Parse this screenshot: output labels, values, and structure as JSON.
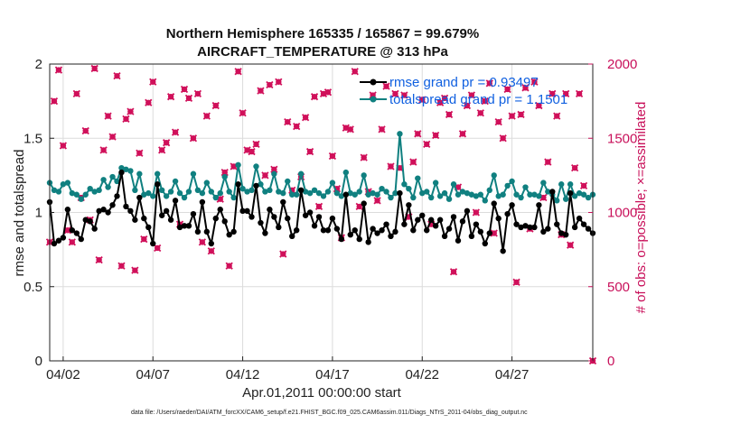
{
  "chart_data": {
    "type": "line",
    "title_line1": "Northern Hemisphere 165335 / 165867 = 99.679%",
    "title_line2": "AIRCRAFT_TEMPERATURE @ 313 hPa",
    "xlabel": "Apr.01,2011 00:00:00 start",
    "ylabel_left": "rmse and totalspread",
    "ylabel_right": "# of obs: o=possible; ×=assimilated",
    "footnote": "data file: /Users/raeder/DAI/ATM_forcXX/CAM6_setup/f.e21.FHIST_BGC.f09_025.CAM6assim.011/Diags_NTrS_2011-04/obs_diag_output.nc",
    "xlim": [
      0.5,
      30.75
    ],
    "ylim_left": [
      0,
      2
    ],
    "ylim_right": [
      0,
      2000
    ],
    "xticks": [
      {
        "x": 1.25,
        "label": "04/02"
      },
      {
        "x": 6.25,
        "label": "04/07"
      },
      {
        "x": 11.25,
        "label": "04/12"
      },
      {
        "x": 16.25,
        "label": "04/17"
      },
      {
        "x": 21.25,
        "label": "04/22"
      },
      {
        "x": 26.25,
        "label": "04/27"
      }
    ],
    "yticks_left": [
      "0",
      "0.5",
      "1",
      "1.5",
      "2"
    ],
    "yticks_right": [
      "0",
      "500",
      "1000",
      "1500",
      "2000"
    ],
    "grid": true,
    "legend_position": "top-right",
    "colors": {
      "rmse": "#000000",
      "spread": "#108080",
      "obs": "#d0105a"
    },
    "x": [
      0.5,
      0.75,
      1.0,
      1.25,
      1.5,
      1.75,
      2.0,
      2.25,
      2.5,
      2.75,
      3.0,
      3.25,
      3.5,
      3.75,
      4.0,
      4.25,
      4.5,
      4.75,
      5.0,
      5.25,
      5.5,
      5.75,
      6.0,
      6.25,
      6.5,
      6.75,
      7.0,
      7.25,
      7.5,
      7.75,
      8.0,
      8.25,
      8.5,
      8.75,
      9.0,
      9.25,
      9.5,
      9.75,
      10.0,
      10.25,
      10.5,
      10.75,
      11.0,
      11.25,
      11.5,
      11.75,
      12.0,
      12.25,
      12.5,
      12.75,
      13.0,
      13.25,
      13.5,
      13.75,
      14.0,
      14.25,
      14.5,
      14.75,
      15.0,
      15.25,
      15.5,
      15.75,
      16.0,
      16.25,
      16.5,
      16.75,
      17.0,
      17.25,
      17.5,
      17.75,
      18.0,
      18.25,
      18.5,
      18.75,
      19.0,
      19.25,
      19.5,
      19.75,
      20.0,
      20.25,
      20.5,
      20.75,
      21.0,
      21.25,
      21.5,
      21.75,
      22.0,
      22.25,
      22.5,
      22.75,
      23.0,
      23.25,
      23.5,
      23.75,
      24.0,
      24.25,
      24.5,
      24.75,
      25.0,
      25.25,
      25.5,
      25.75,
      26.0,
      26.25,
      26.5,
      26.75,
      27.0,
      27.25,
      27.5,
      27.75,
      28.0,
      28.25,
      28.5,
      28.75,
      29.0,
      29.25,
      29.5,
      29.75,
      30.0,
      30.25,
      30.5,
      30.75
    ],
    "series": [
      {
        "name": "rmse grand pr = 0.93497",
        "marker": "dot",
        "values": [
          1.07,
          0.79,
          0.81,
          0.83,
          1.02,
          0.88,
          0.86,
          0.82,
          0.95,
          0.94,
          0.89,
          1.01,
          1.02,
          1.0,
          1.05,
          1.11,
          1.27,
          1.04,
          1.01,
          0.95,
          1.1,
          0.96,
          0.9,
          0.79,
          1.19,
          0.98,
          1.01,
          0.95,
          1.08,
          0.9,
          0.91,
          0.91,
          0.99,
          0.87,
          1.07,
          0.87,
          0.79,
          0.96,
          1.02,
          0.94,
          0.85,
          0.87,
          1.19,
          1.01,
          1.01,
          0.97,
          1.18,
          0.93,
          0.86,
          1.02,
          0.97,
          0.9,
          1.07,
          0.96,
          0.84,
          0.88,
          1.15,
          0.98,
          1.0,
          0.91,
          0.97,
          0.88,
          0.88,
          0.96,
          0.89,
          0.82,
          1.12,
          0.85,
          0.88,
          0.82,
          1.06,
          0.8,
          0.89,
          0.86,
          0.88,
          0.92,
          0.84,
          0.87,
          1.13,
          0.92,
          1.05,
          0.88,
          0.95,
          0.98,
          0.88,
          0.95,
          0.91,
          0.95,
          0.84,
          0.89,
          0.97,
          0.81,
          0.94,
          1.01,
          0.84,
          0.92,
          0.87,
          0.79,
          0.86,
          1.06,
          0.96,
          0.74,
          0.99,
          1.05,
          0.92,
          0.9,
          0.91,
          0.9,
          0.9,
          1.05,
          0.87,
          0.89,
          1.14,
          0.92,
          0.86,
          0.85,
          1.13,
          0.9,
          0.96,
          0.92,
          0.89,
          0.86
        ]
      },
      {
        "name": "totalspread grand pr = 1.1501",
        "marker": "dot",
        "values": [
          1.2,
          1.15,
          1.14,
          1.19,
          1.2,
          1.13,
          1.12,
          1.09,
          1.12,
          1.16,
          1.14,
          1.15,
          1.22,
          1.17,
          1.24,
          1.21,
          1.3,
          1.29,
          1.28,
          1.15,
          1.26,
          1.12,
          1.13,
          1.11,
          1.26,
          1.15,
          1.11,
          1.14,
          1.21,
          1.13,
          1.1,
          1.14,
          1.26,
          1.15,
          1.13,
          1.2,
          1.14,
          1.1,
          1.13,
          1.24,
          1.14,
          1.1,
          1.32,
          1.16,
          1.14,
          1.15,
          1.31,
          1.19,
          1.14,
          1.15,
          1.26,
          1.14,
          1.13,
          1.21,
          1.12,
          1.12,
          1.26,
          1.14,
          1.13,
          1.15,
          1.13,
          1.11,
          1.14,
          1.2,
          1.13,
          1.11,
          1.27,
          1.13,
          1.12,
          1.14,
          1.25,
          1.12,
          1.13,
          1.12,
          1.16,
          1.14,
          1.1,
          1.13,
          1.53,
          1.19,
          1.16,
          1.1,
          1.23,
          1.13,
          1.14,
          1.1,
          1.2,
          1.11,
          1.13,
          1.09,
          1.19,
          1.12,
          1.14,
          1.13,
          1.12,
          1.11,
          1.12,
          1.08,
          1.15,
          1.25,
          1.11,
          1.12,
          1.18,
          1.21,
          1.12,
          1.1,
          1.17,
          1.12,
          1.12,
          1.11,
          1.2,
          1.14,
          1.12,
          1.08,
          1.19,
          1.09,
          1.19,
          1.11,
          1.13,
          1.12,
          1.1,
          1.12
        ]
      }
    ],
    "obs_assimilated_values": [
      800,
      1750,
      1960,
      1450,
      880,
      800,
      1800,
      1100,
      1550,
      950,
      1970,
      680,
      1420,
      1650,
      1510,
      1920,
      640,
      1630,
      1680,
      610,
      1400,
      820,
      1740,
      1880,
      760,
      1420,
      1470,
      1780,
      1540,
      920,
      1830,
      1770,
      1500,
      1800,
      800,
      1650,
      740,
      1720,
      1090,
      1270,
      640,
      1310,
      1950,
      1670,
      1420,
      1410,
      1460,
      1820,
      1250,
      1860,
      1290,
      1880,
      720,
      1610,
      1150,
      1580,
      1240,
      1640,
      1410,
      1780,
      1040,
      1800,
      1810,
      1380,
      1160,
      830,
      1570,
      1560,
      1950,
      1040,
      1370,
      1140,
      1790,
      1080,
      1560,
      1850,
      1310,
      1800,
      1300,
      1790,
      970,
      1340,
      1530,
      1760,
      1460,
      920,
      1520,
      1740,
      1770,
      1660,
      600,
      1170,
      1530,
      1720,
      1790,
      1000,
      1670,
      1750,
      1870,
      860,
      1610,
      1500,
      1830,
      1650,
      530,
      1660,
      1840,
      890,
      1880,
      1720,
      1100,
      1340,
      1800,
      1650,
      850,
      1800,
      780,
      1300,
      1800,
      1180
    ]
  }
}
